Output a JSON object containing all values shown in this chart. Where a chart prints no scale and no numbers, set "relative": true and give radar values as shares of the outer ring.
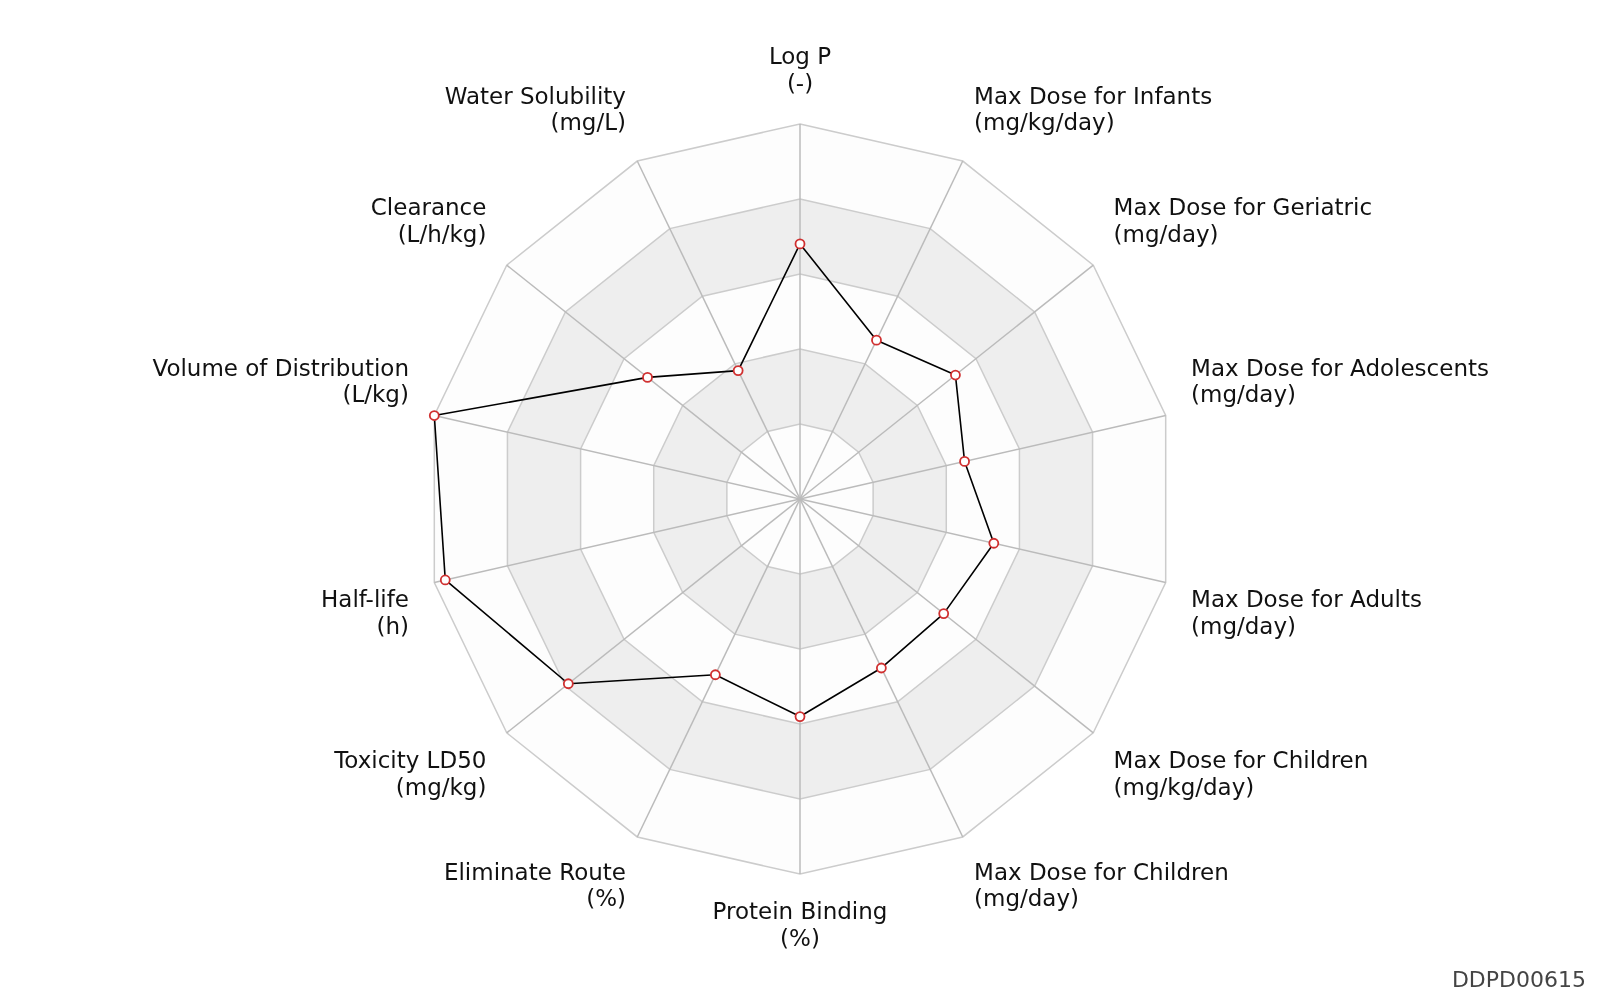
{
  "chart_data": {
    "type": "radar",
    "categories": [
      "Log P\n(-)",
      "Max Dose for Infants\n(mg/kg/day)",
      "Max Dose for Geriatric\n(mg/day)",
      "Max Dose for Adolescents\n(mg/day)",
      "Max Dose for Adults\n(mg/day)",
      "Max Dose for Children\n(mg/kg/day)",
      "Max Dose for Children\n(mg/day)",
      "Protein Binding\n(%)",
      "Eliminate Route\n(%)",
      "Toxicity LD50\n(mg/kg)",
      "Half-life\n(h)",
      "Volume of Distribution\n(L/kg)",
      "Clearance\n(L/h/kg)",
      "Water Solubility\n(mg/L)"
    ],
    "series": [
      {
        "color": "#000000",
        "values": [
          0.68,
          0.47,
          0.53,
          0.45,
          0.53,
          0.49,
          0.5,
          0.58,
          0.52,
          0.79,
          0.97,
          1,
          0.52,
          0.38
        ]
      }
    ],
    "relative": true,
    "grid": true,
    "marker": "circle",
    "line_style": "solid",
    "legend": false,
    "annotations": [
      "DDPD00615"
    ]
  }
}
